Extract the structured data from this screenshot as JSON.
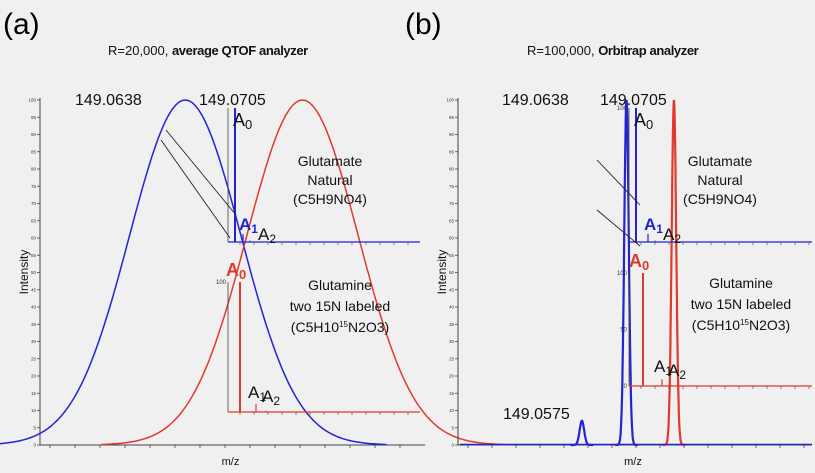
{
  "panels": [
    {
      "label": "(a)",
      "title_prefix": "R=20,000, ",
      "title_bold": "average QTOF analyzer"
    },
    {
      "label": "(b)",
      "title_prefix": "R=100,000, ",
      "title_bold": "Orbitrap analyzer"
    }
  ],
  "colors": {
    "natural": "#2323d0",
    "labeled": "#e03a2e",
    "axis": "#444444"
  },
  "chart_data": [
    {
      "type": "line",
      "panel": "(a)",
      "xlabel": "m/z",
      "ylabel": "Intensity",
      "ylim": [
        0,
        100
      ],
      "yticks": [
        0,
        5,
        10,
        15,
        20,
        25,
        30,
        35,
        40,
        45,
        50,
        55,
        60,
        65,
        70,
        75,
        80,
        85,
        90,
        95,
        100
      ],
      "peak_labels": [
        "149.0638",
        "149.0705"
      ],
      "series": [
        {
          "peak": 149.0638,
          "height": 100,
          "fwhm": 0.0075
        },
        {
          "peak": 149.0705,
          "height": 100,
          "fwhm": 0.0075
        }
      ],
      "insets": [
        {
          "compound": [
            "Glutamate",
            "Natural",
            "(C5H9NO4)"
          ],
          "isotopes": [
            {
              "label": "A0",
              "value": 100
            },
            {
              "label": "A1",
              "value": 6
            },
            {
              "label": "A2",
              "value": 1
            }
          ]
        },
        {
          "compound": [
            "Glutamine",
            "two 15N labeled",
            "(C5H10 15 N2O3)"
          ],
          "isotopes": [
            {
              "label": "A0",
              "value": 100
            },
            {
              "label": "A1",
              "value": 6
            },
            {
              "label": "A2",
              "value": 1
            }
          ]
        }
      ]
    },
    {
      "type": "line",
      "panel": "(b)",
      "xlabel": "m/z",
      "ylabel": "Intensity",
      "ylim": [
        0,
        100
      ],
      "yticks": [
        0,
        5,
        10,
        15,
        20,
        25,
        30,
        35,
        40,
        45,
        50,
        55,
        60,
        65,
        70,
        75,
        80,
        85,
        90,
        95,
        100
      ],
      "peak_labels": [
        "149.0638",
        "149.0705",
        "149.0575"
      ],
      "series": [
        {
          "peak": 149.0575,
          "height": 7
        },
        {
          "peak": 149.0638,
          "height": 100
        },
        {
          "peak": 149.0705,
          "height": 100
        }
      ],
      "insets": [
        {
          "compound": [
            "Glutamate",
            "Natural",
            "(C5H9NO4)"
          ],
          "isotopes": [
            {
              "label": "A0",
              "value": 100
            },
            {
              "label": "A1",
              "value": 6
            },
            {
              "label": "A2",
              "value": 1
            }
          ]
        },
        {
          "compound": [
            "Glutamine",
            "two 15N labeled",
            "(C5H10 15 N2O3)"
          ],
          "isotopes": [
            {
              "label": "A0",
              "value": 100
            },
            {
              "label": "A1",
              "value": 6
            },
            {
              "label": "A2",
              "value": 1
            }
          ]
        }
      ]
    }
  ]
}
